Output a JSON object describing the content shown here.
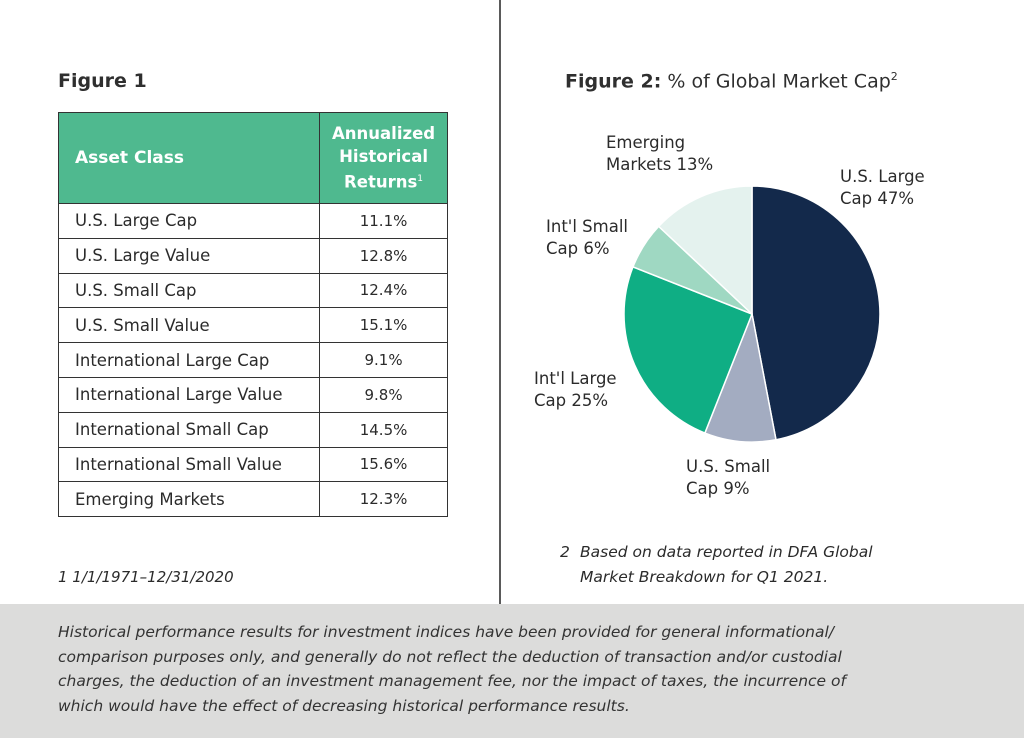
{
  "figure1": {
    "title": "Figure 1",
    "header_col1": "Asset Class",
    "header_col2_lines": [
      "Annualized",
      "Historical",
      "Returns"
    ],
    "header_col2_sup": "1",
    "rows": [
      {
        "asset": "U.S. Large Cap",
        "ret": "11.1%"
      },
      {
        "asset": "U.S. Large Value",
        "ret": "12.8%"
      },
      {
        "asset": "U.S. Small Cap",
        "ret": "12.4%"
      },
      {
        "asset": "U.S. Small Value",
        "ret": "15.1%"
      },
      {
        "asset": "International Large Cap",
        "ret": "9.1%"
      },
      {
        "asset": "International Large Value",
        "ret": "9.8%"
      },
      {
        "asset": "International Small Cap",
        "ret": "14.5%"
      },
      {
        "asset": "International Small Value",
        "ret": "15.6%"
      },
      {
        "asset": "Emerging Markets",
        "ret": "12.3%"
      }
    ],
    "footnote": "1  1/1/1971–12/31/2020"
  },
  "figure2": {
    "title_bold": "Figure 2:",
    "title_rest": " % of Global Market Cap",
    "title_sup": "2",
    "footnote_num": "2",
    "footnote_line1": "Based on data reported in DFA Global",
    "footnote_line2": "Market Breakdown for Q1 2021."
  },
  "chart_data": [
    {
      "type": "table",
      "title": "Figure 1",
      "columns": [
        "Asset Class",
        "Annualized Historical Returns"
      ],
      "rows": [
        [
          "U.S. Large Cap",
          11.1
        ],
        [
          "U.S. Large Value",
          12.8
        ],
        [
          "U.S. Small Cap",
          12.4
        ],
        [
          "U.S. Small Value",
          15.1
        ],
        [
          "International Large Cap",
          9.1
        ],
        [
          "International Large Value",
          9.8
        ],
        [
          "International Small Cap",
          14.5
        ],
        [
          "International Small Value",
          15.6
        ],
        [
          "Emerging Markets",
          12.3
        ]
      ]
    },
    {
      "type": "pie",
      "title": "Figure 2: % of Global Market Cap",
      "slices": [
        {
          "name": "U.S. Large Cap",
          "value": 47,
          "label_lines": [
            "U.S. Large",
            "Cap 47%"
          ],
          "color": "#13294b"
        },
        {
          "name": "U.S. Small Cap",
          "value": 9,
          "label_lines": [
            "U.S. Small",
            "Cap 9%"
          ],
          "color": "#a3acc1"
        },
        {
          "name": "Int'l Large Cap",
          "value": 25,
          "label_lines": [
            "Int'l Large",
            "Cap 25%"
          ],
          "color": "#0fae84"
        },
        {
          "name": "Int'l Small Cap",
          "value": 6,
          "label_lines": [
            "Int'l Small",
            "Cap 6%"
          ],
          "color": "#9fd8c2"
        },
        {
          "name": "Emerging Markets",
          "value": 13,
          "label_lines": [
            "Emerging",
            "Markets 13%"
          ],
          "color": "#e4f2ee"
        }
      ]
    }
  ],
  "disclaimer_lines": [
    "Historical performance results for investment indices have been provided for general informational/",
    "comparison purposes only, and generally do not reflect the deduction of transaction and/or custodial",
    "charges, the deduction of an investment management fee, nor the impact of taxes, the incurrence of",
    "which would have the effect of decreasing historical performance results."
  ]
}
